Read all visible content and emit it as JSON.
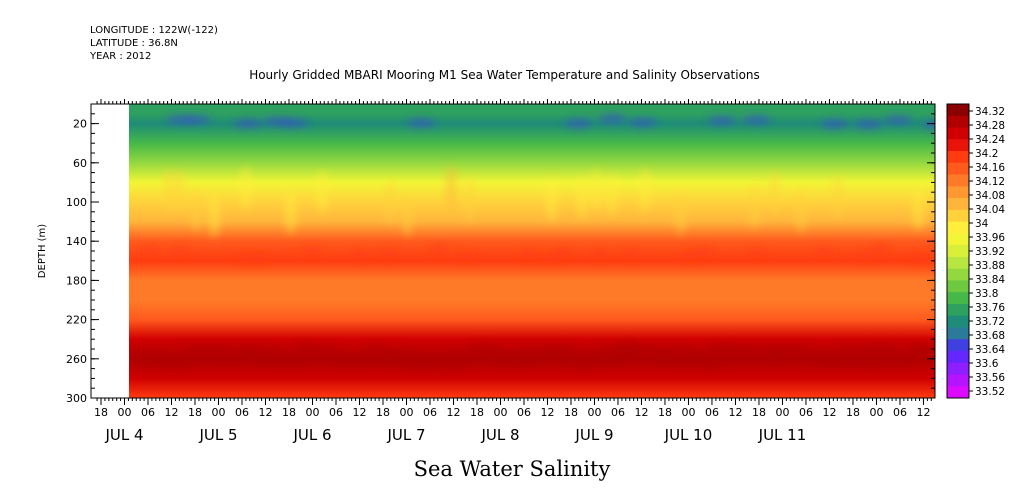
{
  "header": {
    "longitude": "LONGITUDE : 122W(-122)",
    "latitude": "LATITUDE : 36.8N",
    "year": "YEAR : 2012",
    "title": "Hourly Gridded MBARI Mooring M1 Sea Water Temperature and Salinity Observations"
  },
  "chart_data": {
    "type": "heatmap",
    "title": "Hourly Gridded MBARI Mooring M1 Sea Water Temperature and Salinity Observations",
    "subtitle": "Sea Water Salinity",
    "ylabel": "DEPTH (m)",
    "xlabel": "",
    "ylim": [
      300,
      0
    ],
    "y_ticks": [
      20,
      60,
      100,
      140,
      180,
      220,
      260,
      300
    ],
    "x_hour_ticks": [
      "18",
      "00",
      "06",
      "12",
      "18",
      "00",
      "06",
      "12",
      "18",
      "00",
      "06",
      "12",
      "18",
      "00",
      "06",
      "12",
      "18",
      "00",
      "06",
      "12",
      "18",
      "00",
      "06",
      "12",
      "18",
      "00",
      "06",
      "12",
      "18",
      "00",
      "06",
      "12",
      "18",
      "00",
      "06",
      "12"
    ],
    "x_day_labels": [
      "JUL 4",
      "JUL 5",
      "JUL 6",
      "JUL 7",
      "JUL 8",
      "JUL 9",
      "JUL 10",
      "JUL 11"
    ],
    "colorbar": {
      "min": 33.52,
      "max": 34.32,
      "step": 0.04,
      "labels": [
        "34.32",
        "34.28",
        "34.24",
        "34.2",
        "34.16",
        "34.12",
        "34.08",
        "34.04",
        "34",
        "33.96",
        "33.92",
        "33.88",
        "33.84",
        "33.8",
        "33.76",
        "33.72",
        "33.68",
        "33.64",
        "33.6",
        "33.56",
        "33.52"
      ],
      "colors": [
        "#8b0000",
        "#b00000",
        "#d00000",
        "#e8140a",
        "#ff3c10",
        "#ff5a1e",
        "#ff7a28",
        "#ff9830",
        "#ffb43c",
        "#ffd23c",
        "#ffee3c",
        "#f2f535",
        "#d8f03a",
        "#b8e640",
        "#94d840",
        "#6ec840",
        "#46b848",
        "#2ea060",
        "#1e8c78",
        "#2c7a9a",
        "#4040e0",
        "#6428ff",
        "#8c1eff",
        "#b414ff",
        "#dc0aff"
      ]
    },
    "profile": [
      {
        "depth": 10,
        "salinity": 33.74
      },
      {
        "depth": 20,
        "salinity": 33.72
      },
      {
        "depth": 40,
        "salinity": 33.78
      },
      {
        "depth": 60,
        "salinity": 33.86
      },
      {
        "depth": 80,
        "salinity": 33.96
      },
      {
        "depth": 100,
        "salinity": 34.02
      },
      {
        "depth": 120,
        "salinity": 34.06
      },
      {
        "depth": 140,
        "salinity": 34.14
      },
      {
        "depth": 160,
        "salinity": 34.17
      },
      {
        "depth": 180,
        "salinity": 34.12
      },
      {
        "depth": 200,
        "salinity": 34.11
      },
      {
        "depth": 220,
        "salinity": 34.16
      },
      {
        "depth": 240,
        "salinity": 34.24
      },
      {
        "depth": 260,
        "salinity": 34.28
      },
      {
        "depth": 280,
        "salinity": 34.24
      },
      {
        "depth": 300,
        "salinity": 34.2
      }
    ]
  }
}
